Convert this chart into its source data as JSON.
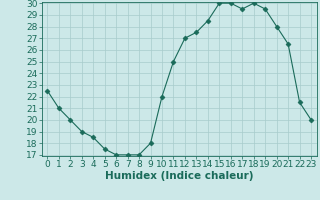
{
  "x": [
    0,
    1,
    2,
    3,
    4,
    5,
    6,
    7,
    8,
    9,
    10,
    11,
    12,
    13,
    14,
    15,
    16,
    17,
    18,
    19,
    20,
    21,
    22,
    23
  ],
  "y": [
    22.5,
    21.0,
    20.0,
    19.0,
    18.5,
    17.5,
    17.0,
    17.0,
    17.0,
    18.0,
    22.0,
    25.0,
    27.0,
    27.5,
    28.5,
    30.0,
    30.0,
    29.5,
    30.0,
    29.5,
    28.0,
    26.5,
    21.5,
    20.0
  ],
  "line_color": "#1a6b5a",
  "marker": "D",
  "marker_size": 2.5,
  "background_color": "#cce8e8",
  "grid_color": "#a8cccc",
  "xlabel": "Humidex (Indice chaleur)",
  "xlim": [
    -0.5,
    23.5
  ],
  "ylim": [
    17,
    30
  ],
  "yticks": [
    17,
    18,
    19,
    20,
    21,
    22,
    23,
    24,
    25,
    26,
    27,
    28,
    29,
    30
  ],
  "xticks": [
    0,
    1,
    2,
    3,
    4,
    5,
    6,
    7,
    8,
    9,
    10,
    11,
    12,
    13,
    14,
    15,
    16,
    17,
    18,
    19,
    20,
    21,
    22,
    23
  ],
  "tick_color": "#1a6b5a",
  "label_color": "#1a6b5a",
  "font_size": 6.5
}
